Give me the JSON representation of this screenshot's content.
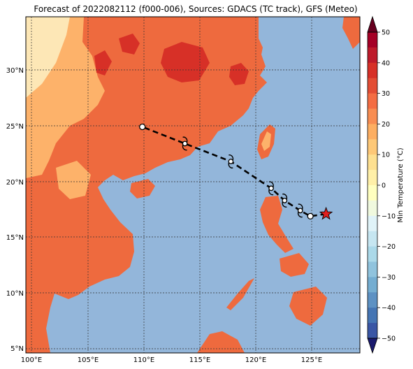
{
  "title": "Forecast of 2022082112 (f000-006), Sources: GDACS (TC track), GFS (Meteo)",
  "map": {
    "lon_ticks": [
      "100°E",
      "105°E",
      "110°E",
      "115°E",
      "120°E",
      "125°E"
    ],
    "lat_ticks": [
      "30°N",
      "25°N",
      "20°N",
      "15°N",
      "10°N",
      "5°N"
    ],
    "colors": {
      "ocean": "#93b6da",
      "land_main": "#ee6a3e",
      "land_warm": "#fdb26a",
      "land_pale": "#fde7b6",
      "land_hot": "#d73027",
      "track": "#000000",
      "star": "#e01f1f"
    }
  },
  "colorbar": {
    "label": "Min Temperature (°C)",
    "ticks": [
      "50",
      "40",
      "30",
      "20",
      "10",
      "0",
      "−10",
      "−20",
      "−30",
      "−40",
      "−50"
    ],
    "colors": [
      "#a50026",
      "#d73027",
      "#f46d43",
      "#fdae61",
      "#fee090",
      "#ffffbf",
      "#e0f3f8",
      "#abd9e9",
      "#74add1",
      "#4575b4",
      "#313695"
    ]
  },
  "track": {
    "points": [
      {
        "lon": 126.3,
        "lat": 17.1,
        "marker": "star"
      },
      {
        "lon": 124.9,
        "lat": 16.9,
        "marker": "circle"
      },
      {
        "lon": 124.0,
        "lat": 17.4,
        "marker": "storm"
      },
      {
        "lon": 122.6,
        "lat": 18.3,
        "marker": "storm"
      },
      {
        "lon": 121.4,
        "lat": 19.4,
        "marker": "storm"
      },
      {
        "lon": 117.8,
        "lat": 21.8,
        "marker": "storm"
      },
      {
        "lon": 113.7,
        "lat": 23.4,
        "marker": "storm"
      },
      {
        "lon": 109.9,
        "lat": 24.9,
        "marker": "circle"
      }
    ]
  }
}
